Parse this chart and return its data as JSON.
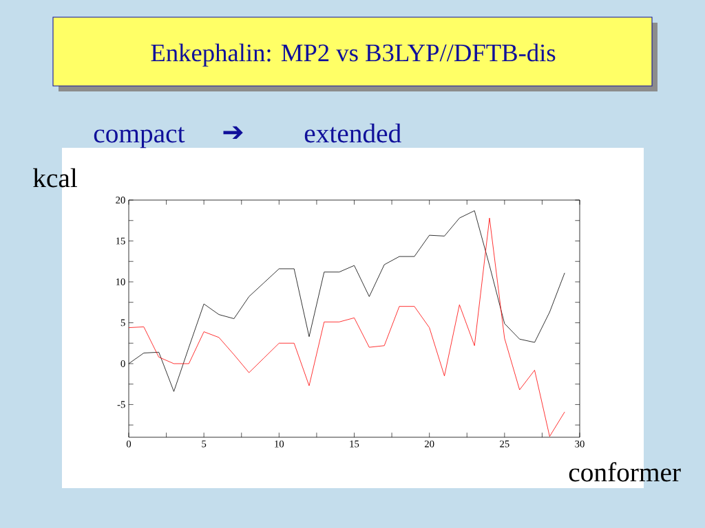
{
  "chart_data": {
    "type": "line",
    "title": "Enkephalin: MP2 vs B3LYP//DFTB-dis",
    "xlabel": "conformer",
    "ylabel": "kcal",
    "annotations": [
      "compact",
      "➔",
      "extended"
    ],
    "x": [
      0,
      1,
      2,
      3,
      4,
      5,
      6,
      7,
      8,
      9,
      10,
      11,
      12,
      13,
      14,
      15,
      16,
      17,
      18,
      19,
      20,
      21,
      22,
      23,
      24,
      25,
      26,
      27,
      28,
      29
    ],
    "series": [
      {
        "color": "#000000",
        "values": [
          0,
          1.3,
          1.4,
          -3.4,
          2.0,
          7.3,
          6.0,
          5.5,
          8.2,
          9.9,
          11.6,
          11.6,
          3.3,
          11.2,
          11.2,
          12.0,
          8.2,
          12.1,
          13.1,
          13.1,
          15.7,
          15.6,
          17.8,
          18.7,
          12.0,
          4.9,
          3.0,
          2.6,
          6.3,
          11.1
        ]
      },
      {
        "color": "#ff0000",
        "values": [
          4.4,
          4.5,
          0.8,
          0,
          0,
          3.9,
          3.2,
          1.1,
          -1.1,
          0.7,
          2.5,
          2.5,
          -2.7,
          5.1,
          5.1,
          5.6,
          2.0,
          2.2,
          7.0,
          7.0,
          4.4,
          -1.5,
          7.2,
          2.2,
          17.8,
          3.1,
          -3.2,
          -0.8,
          -8.9,
          -5.9
        ]
      }
    ],
    "xlim": [
      0,
      30
    ],
    "ylim": [
      -9,
      20
    ],
    "xticks": [
      0,
      {
        "value": 2.5,
        "label": null
      },
      5,
      {
        "value": 7.5,
        "label": null
      },
      10,
      {
        "value": 12.5,
        "label": null
      },
      15,
      {
        "value": 17.5,
        "label": null
      },
      20,
      {
        "value": 22.5,
        "label": null
      },
      25,
      {
        "value": 27.5,
        "label": null
      },
      30
    ],
    "yticks": [
      {
        "value": -7.5,
        "label": null
      },
      -5,
      {
        "value": -2.5,
        "label": null
      },
      0,
      {
        "value": 2.5,
        "label": null
      },
      5,
      {
        "value": 7.5,
        "label": null
      },
      10,
      {
        "value": 12.5,
        "label": null
      },
      15,
      {
        "value": 17.5,
        "label": null
      },
      20
    ]
  }
}
